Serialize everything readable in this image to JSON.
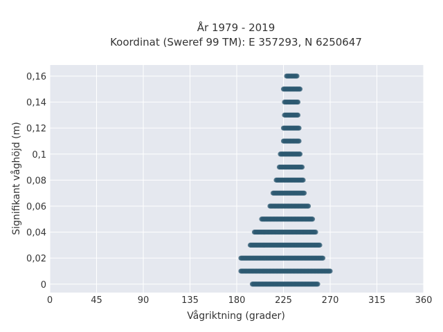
{
  "chart_data": {
    "type": "scatter",
    "title": "År 1979 - 2019",
    "subtitle": "Koordinat (Sweref 99 TM): E 357293, N 6250647",
    "xlabel": "Vågriktning (grader)",
    "ylabel": "Signifikant våghöjd (m)",
    "xlim": [
      0,
      360
    ],
    "ylim": [
      -0.0065,
      0.1685
    ],
    "xticks": [
      0,
      45,
      90,
      135,
      180,
      225,
      270,
      315,
      360
    ],
    "xtick_labels": [
      "0",
      "45",
      "90",
      "135",
      "180",
      "225",
      "270",
      "315",
      "360"
    ],
    "yticks": [
      0,
      0.02,
      0.04,
      0.06,
      0.08,
      0.1,
      0.12,
      0.14,
      0.16
    ],
    "ytick_labels": [
      "0",
      "0,02",
      "0,04",
      "0,06",
      "0,08",
      "0,1",
      "0,12",
      "0,14",
      "0,16"
    ],
    "grid": true,
    "marker_color": "#2e5a72",
    "plot_background": "#e5e8ef",
    "bands": [
      {
        "y": 0.0,
        "x_min": 195,
        "x_max": 258
      },
      {
        "y": 0.01,
        "x_min": 184,
        "x_max": 270
      },
      {
        "y": 0.02,
        "x_min": 184,
        "x_max": 263
      },
      {
        "y": 0.03,
        "x_min": 193,
        "x_max": 260
      },
      {
        "y": 0.04,
        "x_min": 197,
        "x_max": 256
      },
      {
        "y": 0.05,
        "x_min": 204,
        "x_max": 253
      },
      {
        "y": 0.06,
        "x_min": 212,
        "x_max": 249
      },
      {
        "y": 0.07,
        "x_min": 215,
        "x_max": 245
      },
      {
        "y": 0.08,
        "x_min": 218,
        "x_max": 244
      },
      {
        "y": 0.09,
        "x_min": 221,
        "x_max": 243
      },
      {
        "y": 0.1,
        "x_min": 222,
        "x_max": 241
      },
      {
        "y": 0.11,
        "x_min": 225,
        "x_max": 240
      },
      {
        "y": 0.12,
        "x_min": 225,
        "x_max": 240
      },
      {
        "y": 0.13,
        "x_min": 226,
        "x_max": 239
      },
      {
        "y": 0.14,
        "x_min": 226,
        "x_max": 239
      },
      {
        "y": 0.15,
        "x_min": 225,
        "x_max": 241
      },
      {
        "y": 0.16,
        "x_min": 228,
        "x_max": 238
      }
    ]
  }
}
